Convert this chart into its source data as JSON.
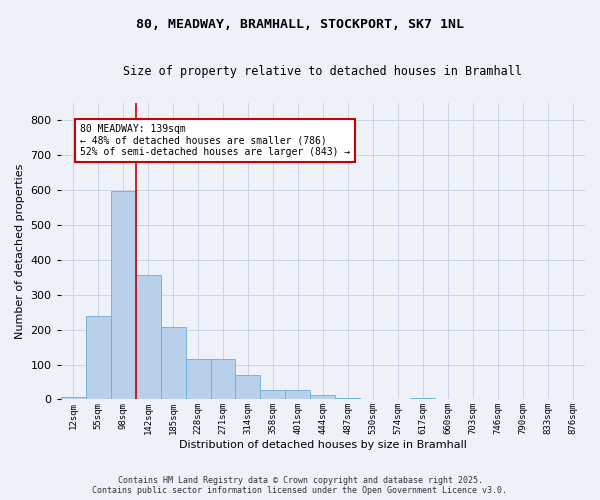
{
  "title": "80, MEADWAY, BRAMHALL, STOCKPORT, SK7 1NL",
  "subtitle": "Size of property relative to detached houses in Bramhall",
  "xlabel": "Distribution of detached houses by size in Bramhall",
  "ylabel": "Number of detached properties",
  "footer_line1": "Contains HM Land Registry data © Crown copyright and database right 2025.",
  "footer_line2": "Contains public sector information licensed under the Open Government Licence v3.0.",
  "bin_labels": [
    "12sqm",
    "55sqm",
    "98sqm",
    "142sqm",
    "185sqm",
    "228sqm",
    "271sqm",
    "314sqm",
    "358sqm",
    "401sqm",
    "444sqm",
    "487sqm",
    "530sqm",
    "574sqm",
    "617sqm",
    "660sqm",
    "703sqm",
    "746sqm",
    "790sqm",
    "833sqm",
    "876sqm"
  ],
  "bar_heights": [
    8,
    240,
    598,
    356,
    207,
    116,
    116,
    70,
    28,
    28,
    14,
    5,
    0,
    0,
    5,
    0,
    0,
    0,
    0,
    0,
    0
  ],
  "bar_color": "#b8d0ea",
  "bar_edge_color": "#6aaed6",
  "grid_color": "#c8d4e4",
  "background_color": "#eef2f8",
  "vline_color": "#cc0000",
  "annotation_text": "80 MEADWAY: 139sqm\n← 48% of detached houses are smaller (786)\n52% of semi-detached houses are larger (843) →",
  "annotation_box_color": "#ffffff",
  "annotation_box_edge": "#cc0000",
  "ylim": [
    0,
    850
  ],
  "yticks": [
    0,
    100,
    200,
    300,
    400,
    500,
    600,
    700,
    800
  ]
}
